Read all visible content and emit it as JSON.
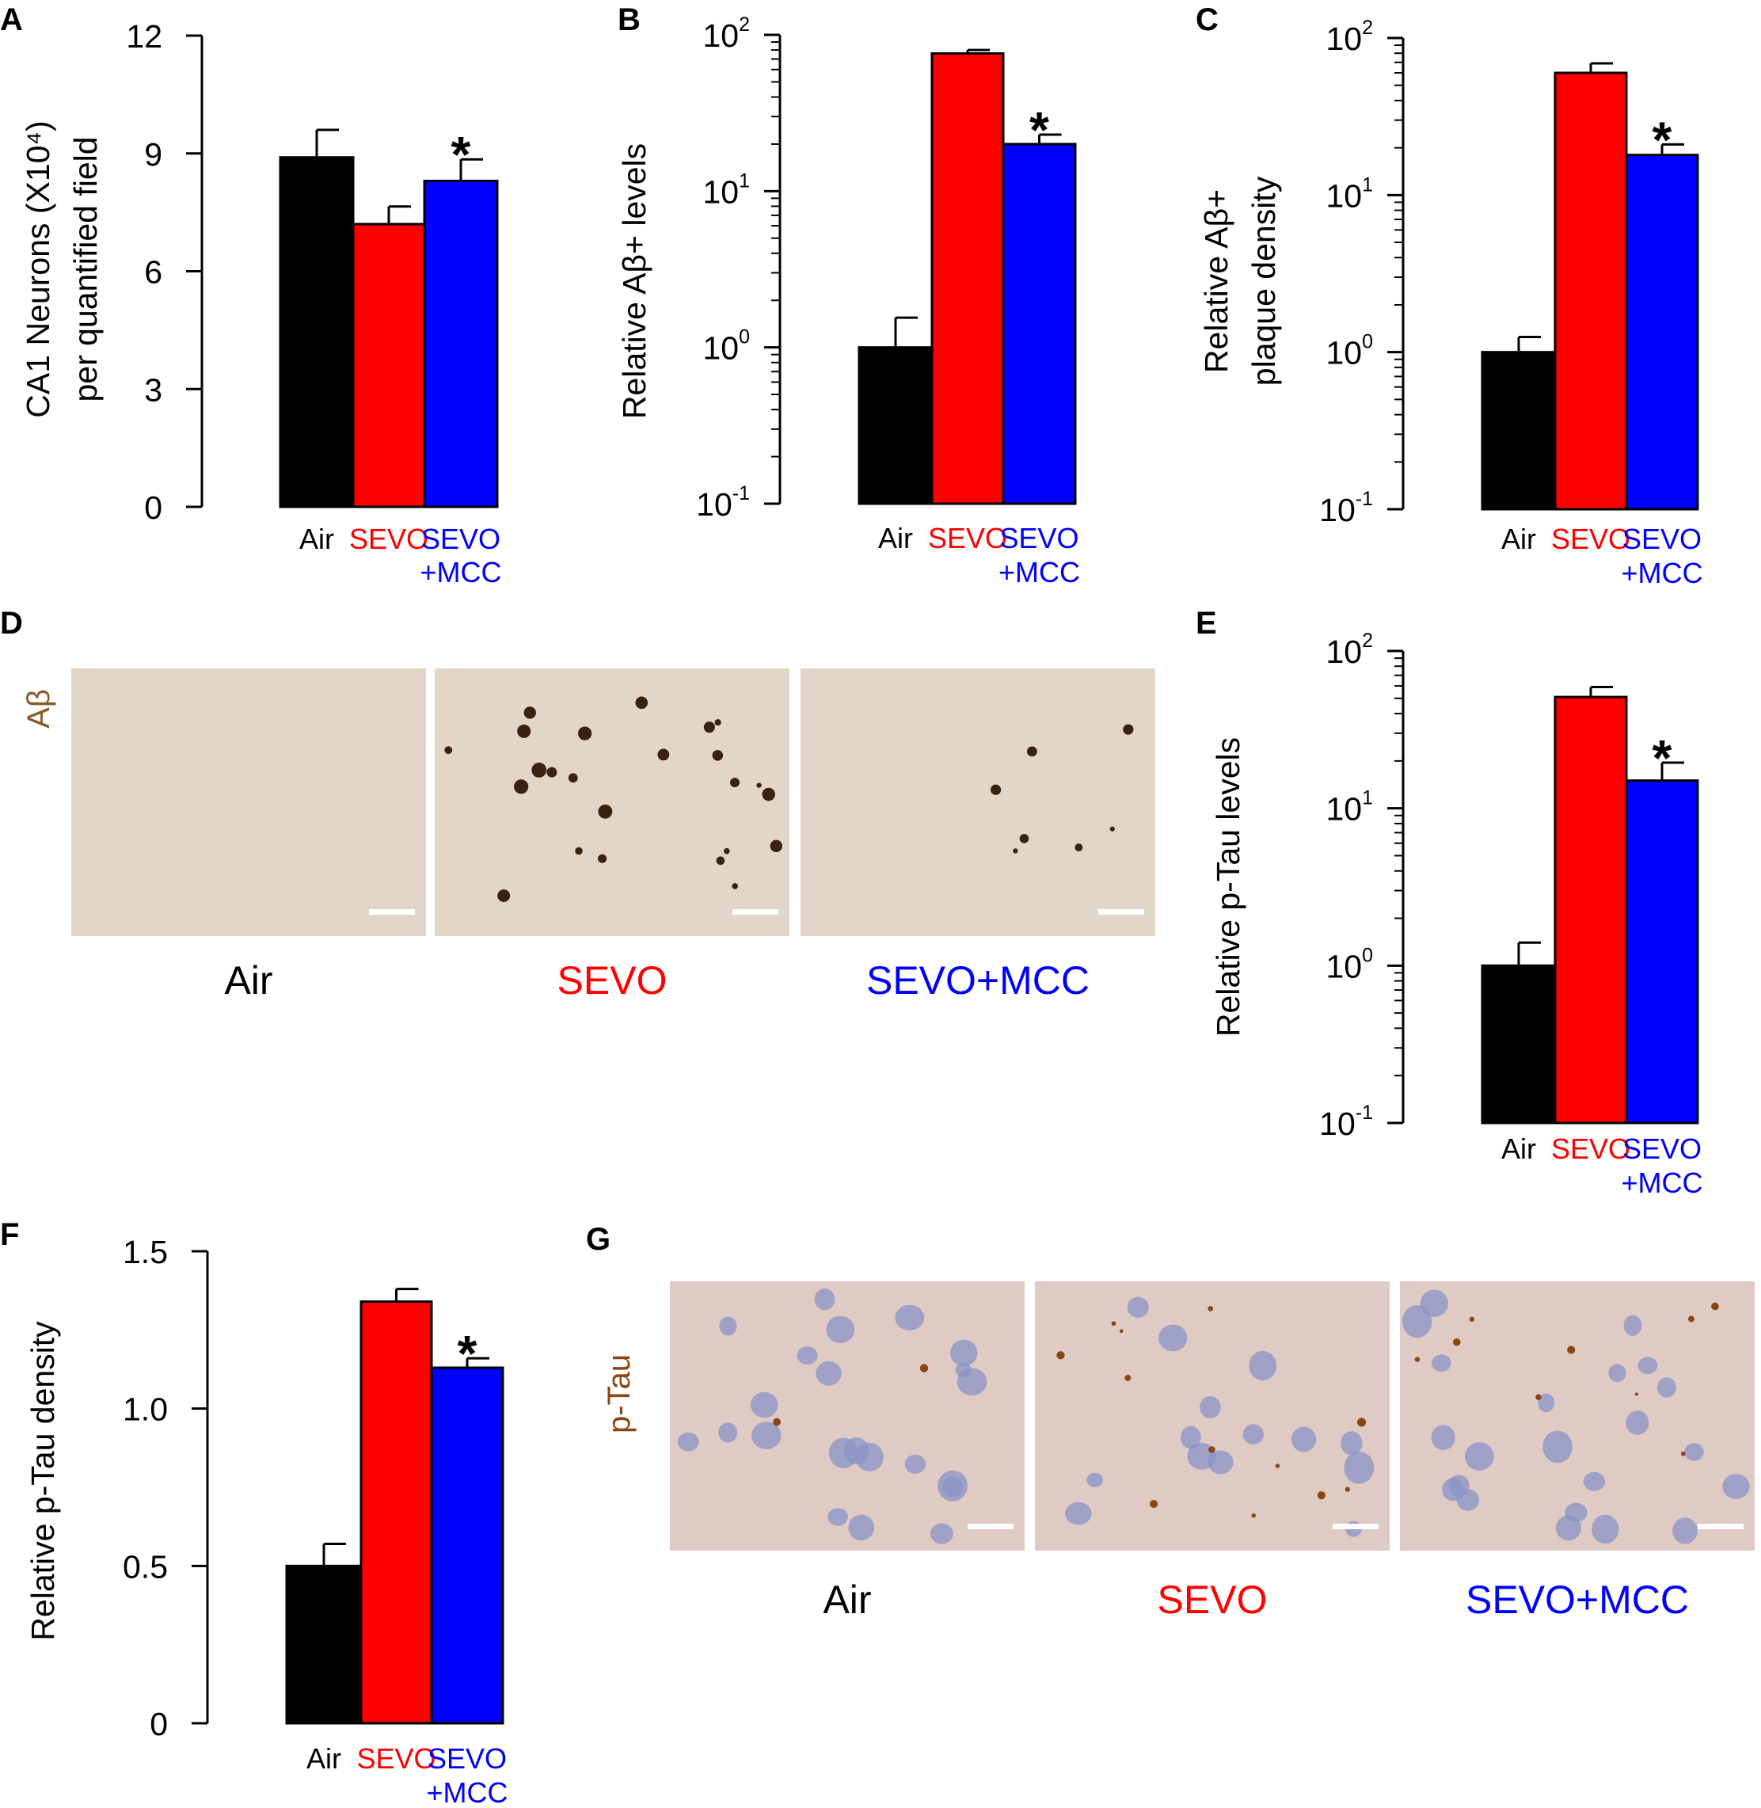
{
  "colors": {
    "air": "#000000",
    "sevo": "#ff0000",
    "sevo_mcc": "#0000ff",
    "abeta_stain": "#8b5a2b",
    "ptau_stain": "#8b4513",
    "abeta_background": "#e2d6c8",
    "ptau_background": "#dfcbc3",
    "plaque": "#3a2210",
    "nucleus": "#8a93c8",
    "scale_bar": "#ffffff"
  },
  "chart_data": [
    {
      "panel": "A",
      "type": "bar",
      "scale": "linear",
      "title": "",
      "ylabel_lines": [
        "CA1 Neurons (X10⁴)",
        "per quantified field"
      ],
      "ylim": [
        0,
        12
      ],
      "yticks": [
        "0",
        "3",
        "6",
        "9",
        "12"
      ],
      "categories": [
        "Air",
        "SEVO",
        "SEVO\n+MCC"
      ],
      "values": [
        8.9,
        7.2,
        8.3
      ],
      "errors": [
        0.7,
        0.45,
        0.55
      ],
      "significance": [
        "",
        "",
        "*"
      ]
    },
    {
      "panel": "B",
      "type": "bar",
      "scale": "log",
      "ylabel_lines": [
        "Relative Aβ+ levels"
      ],
      "ylim": [
        0.1,
        100
      ],
      "yticks": [
        {
          "base": "10",
          "exp": "-1"
        },
        {
          "base": "10",
          "exp": "0"
        },
        {
          "base": "10",
          "exp": "1"
        },
        {
          "base": "10",
          "exp": "2"
        }
      ],
      "categories": [
        "Air",
        "SEVO",
        "SEVO\n+MCC"
      ],
      "values": [
        1.0,
        76,
        20
      ],
      "errors": [
        0.55,
        4,
        3
      ],
      "significance": [
        "",
        "",
        "*"
      ]
    },
    {
      "panel": "C",
      "type": "bar",
      "scale": "log",
      "ylabel_lines": [
        "Relative Aβ+",
        "plaque density"
      ],
      "ylim": [
        0.1,
        100
      ],
      "yticks": [
        {
          "base": "10",
          "exp": "-1"
        },
        {
          "base": "10",
          "exp": "0"
        },
        {
          "base": "10",
          "exp": "1"
        },
        {
          "base": "10",
          "exp": "2"
        }
      ],
      "categories": [
        "Air",
        "SEVO",
        "SEVO\n+MCC"
      ],
      "values": [
        1.0,
        60,
        18
      ],
      "errors": [
        0.25,
        9,
        3
      ],
      "significance": [
        "",
        "",
        "*"
      ]
    },
    {
      "panel": "E",
      "type": "bar",
      "scale": "log",
      "ylabel_lines": [
        "Relative p-Tau levels"
      ],
      "ylim": [
        0.1,
        100
      ],
      "yticks": [
        {
          "base": "10",
          "exp": "-1"
        },
        {
          "base": "10",
          "exp": "0"
        },
        {
          "base": "10",
          "exp": "1"
        },
        {
          "base": "10",
          "exp": "2"
        }
      ],
      "categories": [
        "Air",
        "SEVO",
        "SEVO\n+MCC"
      ],
      "values": [
        1.0,
        51,
        15
      ],
      "errors": [
        0.4,
        8,
        4.5
      ],
      "significance": [
        "",
        "",
        "*"
      ]
    },
    {
      "panel": "F",
      "type": "bar",
      "scale": "linear",
      "ylabel_lines": [
        "Relative p-Tau density"
      ],
      "ylim": [
        0,
        1.5
      ],
      "yticks": [
        "0",
        "0.5",
        "1.0",
        "1.5"
      ],
      "categories": [
        "Air",
        "SEVO",
        "SEVO\n+MCC"
      ],
      "values": [
        0.5,
        1.34,
        1.13
      ],
      "errors": [
        0.07,
        0.04,
        0.03
      ],
      "significance": [
        "",
        "",
        "*"
      ]
    }
  ],
  "image_panels": [
    {
      "panel": "D",
      "stain_label": "Aβ",
      "stain": "abeta",
      "micrographs": [
        {
          "caption": "Air",
          "plaques": 0,
          "nuclei": 0
        },
        {
          "caption": "SEVO",
          "plaques": 24,
          "nuclei": 0
        },
        {
          "caption": "SEVO+MCC",
          "plaques": 7,
          "nuclei": 0
        }
      ]
    },
    {
      "panel": "G",
      "stain_label": "p-Tau",
      "stain": "ptau",
      "micrographs": [
        {
          "caption": "Air",
          "plaques": 2,
          "nuclei": 22
        },
        {
          "caption": "SEVO",
          "plaques": 12,
          "nuclei": 14
        },
        {
          "caption": "SEVO+MCC",
          "plaques": 9,
          "nuclei": 22
        }
      ]
    }
  ]
}
